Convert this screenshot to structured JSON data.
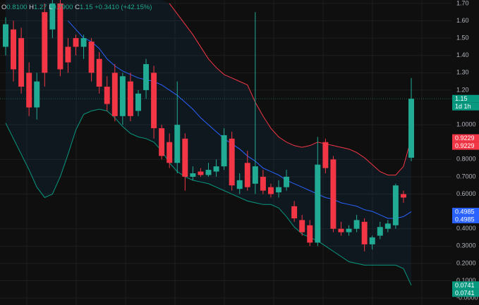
{
  "chart_data": {
    "type": "candlestick",
    "header": {
      "items": [
        {
          "key": "O",
          "text": "0.8100"
        },
        {
          "key": "H",
          "text": "1.27"
        },
        {
          "key": "L",
          "text": "0.7900"
        },
        {
          "key": "C",
          "text": "1.15"
        }
      ],
      "change": "+0.3410 (+42.15%)"
    },
    "up_color": "#22ab94",
    "down_color": "#f23645",
    "open": [
      1.45,
      1.55,
      1.5,
      1.3,
      1.1,
      1.65,
      1.55,
      1.7,
      1.45,
      1.5,
      1.45,
      1.48,
      1.38,
      1.22,
      1.3,
      1.05,
      1.25,
      1.08,
      1.2,
      1.3,
      0.98,
      0.9,
      0.78,
      0.92,
      0.7,
      0.73,
      0.71,
      0.73,
      0.76,
      0.92,
      0.63,
      0.78,
      0.66,
      0.7,
      0.64,
      0.61,
      0.64,
      0.53,
      0.45,
      0.42,
      0.32,
      0.9,
      0.8,
      0.4,
      0.38,
      0.4,
      0.44,
      0.31,
      0.36,
      0.4,
      0.42,
      0.6,
      0.81
    ],
    "high": [
      1.62,
      1.6,
      1.56,
      1.36,
      1.3,
      1.7,
      1.72,
      1.72,
      1.5,
      1.52,
      1.52,
      1.5,
      1.42,
      1.28,
      1.35,
      1.3,
      1.3,
      1.2,
      1.38,
      1.34,
      1.0,
      0.95,
      1.25,
      0.95,
      0.76,
      0.75,
      0.78,
      0.8,
      0.98,
      0.96,
      0.72,
      0.85,
      1.65,
      0.74,
      0.66,
      0.68,
      0.74,
      0.56,
      0.48,
      0.45,
      0.93,
      0.92,
      0.82,
      0.44,
      0.42,
      0.48,
      0.46,
      0.36,
      0.44,
      0.45,
      0.66,
      0.62,
      1.27
    ],
    "low": [
      1.4,
      1.25,
      1.18,
      1.05,
      1.03,
      1.22,
      1.5,
      1.28,
      1.3,
      1.4,
      1.38,
      1.25,
      1.18,
      1.08,
      1.02,
      1.0,
      1.02,
      1.05,
      1.15,
      0.92,
      0.8,
      0.75,
      0.72,
      0.62,
      0.68,
      0.7,
      0.7,
      0.7,
      0.74,
      0.62,
      0.6,
      0.62,
      0.6,
      0.6,
      0.58,
      0.58,
      0.62,
      0.44,
      0.36,
      0.3,
      0.3,
      0.72,
      0.38,
      0.36,
      0.36,
      0.38,
      0.27,
      0.28,
      0.34,
      0.38,
      0.4,
      0.55,
      0.79
    ],
    "close": [
      1.58,
      1.32,
      1.22,
      1.1,
      1.25,
      1.3,
      1.7,
      1.32,
      1.36,
      1.45,
      1.5,
      1.3,
      1.22,
      1.12,
      1.05,
      1.28,
      1.05,
      1.18,
      1.35,
      0.98,
      0.82,
      0.78,
      1.0,
      0.7,
      0.72,
      0.71,
      0.74,
      0.76,
      0.94,
      0.65,
      0.68,
      0.64,
      0.76,
      0.62,
      0.6,
      0.64,
      0.7,
      0.46,
      0.38,
      0.32,
      0.77,
      0.75,
      0.4,
      0.38,
      0.4,
      0.45,
      0.31,
      0.35,
      0.41,
      0.43,
      0.65,
      0.58,
      1.15
    ],
    "bands": [
      {
        "color": "#f23645",
        "values": [
          null,
          null,
          null,
          null,
          null,
          null,
          null,
          null,
          null,
          null,
          null,
          null,
          null,
          null,
          null,
          null,
          null,
          null,
          null,
          null,
          null,
          1.7,
          1.64,
          1.58,
          1.52,
          1.45,
          1.38,
          1.33,
          1.29,
          1.27,
          1.25,
          1.23,
          1.13,
          1.05,
          0.98,
          0.93,
          0.9,
          0.88,
          0.87,
          0.88,
          0.9,
          0.89,
          0.88,
          0.87,
          0.86,
          0.84,
          0.81,
          0.77,
          0.73,
          0.71,
          0.71,
          0.76,
          0.92
        ]
      },
      {
        "color": "#2962ff",
        "values": [
          null,
          null,
          null,
          null,
          null,
          null,
          null,
          null,
          1.6,
          1.55,
          1.5,
          1.48,
          1.44,
          1.38,
          1.34,
          1.31,
          1.29,
          1.27,
          1.26,
          1.25,
          1.23,
          1.2,
          1.17,
          1.13,
          1.09,
          1.04,
          1.0,
          0.96,
          0.92,
          0.89,
          0.86,
          0.82,
          0.79,
          0.75,
          0.73,
          0.71,
          0.68,
          0.66,
          0.64,
          0.62,
          0.6,
          0.58,
          0.57,
          0.55,
          0.54,
          0.53,
          0.51,
          0.5,
          0.48,
          0.46,
          0.46,
          0.47,
          0.4985
        ]
      },
      {
        "color": "#089981",
        "values": [
          1.01,
          0.92,
          0.83,
          0.74,
          0.64,
          0.58,
          0.6,
          0.7,
          0.83,
          0.97,
          1.06,
          1.08,
          1.09,
          1.08,
          1.04,
          0.99,
          0.95,
          0.93,
          0.92,
          0.9,
          0.85,
          0.78,
          0.73,
          0.7,
          0.68,
          0.67,
          0.66,
          0.64,
          0.62,
          0.6,
          0.58,
          0.56,
          0.55,
          0.54,
          0.54,
          0.52,
          0.47,
          0.41,
          0.37,
          0.35,
          0.33,
          0.3,
          0.27,
          0.24,
          0.21,
          0.2,
          0.19,
          0.19,
          0.19,
          0.19,
          0.19,
          0.17,
          0.0741
        ]
      }
    ],
    "ylim": [
      -0.04,
      1.72
    ],
    "yticks": [
      {
        "value": 1.7,
        "label": "1.70"
      },
      {
        "value": 1.6,
        "label": "1.60"
      },
      {
        "value": 1.5,
        "label": "1.50"
      },
      {
        "value": 1.4,
        "label": "1.40"
      },
      {
        "value": 1.3,
        "label": "1.30"
      },
      {
        "value": 1.2,
        "label": "1.20"
      },
      {
        "value": 1.0,
        "label": "1.0000"
      },
      {
        "value": 0.8,
        "label": "0.8000"
      },
      {
        "value": 0.7,
        "label": "0.7000"
      },
      {
        "value": 0.6,
        "label": "0.6000"
      },
      {
        "value": 0.4,
        "label": "0.4000"
      },
      {
        "value": 0.3,
        "label": "0.3000"
      },
      {
        "value": 0.2,
        "label": "0.2000"
      },
      {
        "value": 0.1,
        "label": "0.1000"
      },
      {
        "value": 0,
        "label": "-0.0000"
      }
    ],
    "grid": true,
    "price_labels": [
      {
        "value": 1.15,
        "color": "#089981",
        "texts": [
          "1.15",
          "1d 1h"
        ]
      },
      {
        "value": 0.9229,
        "color": "#f23645",
        "texts": [
          "0.9229",
          "0.9229"
        ]
      },
      {
        "value": 0.4985,
        "color": "#2962ff",
        "texts": [
          "0.4985",
          "0.4985"
        ]
      },
      {
        "value": 0.0741,
        "color": "#089981",
        "texts": [
          "0.0741",
          "0.0741"
        ]
      }
    ]
  }
}
